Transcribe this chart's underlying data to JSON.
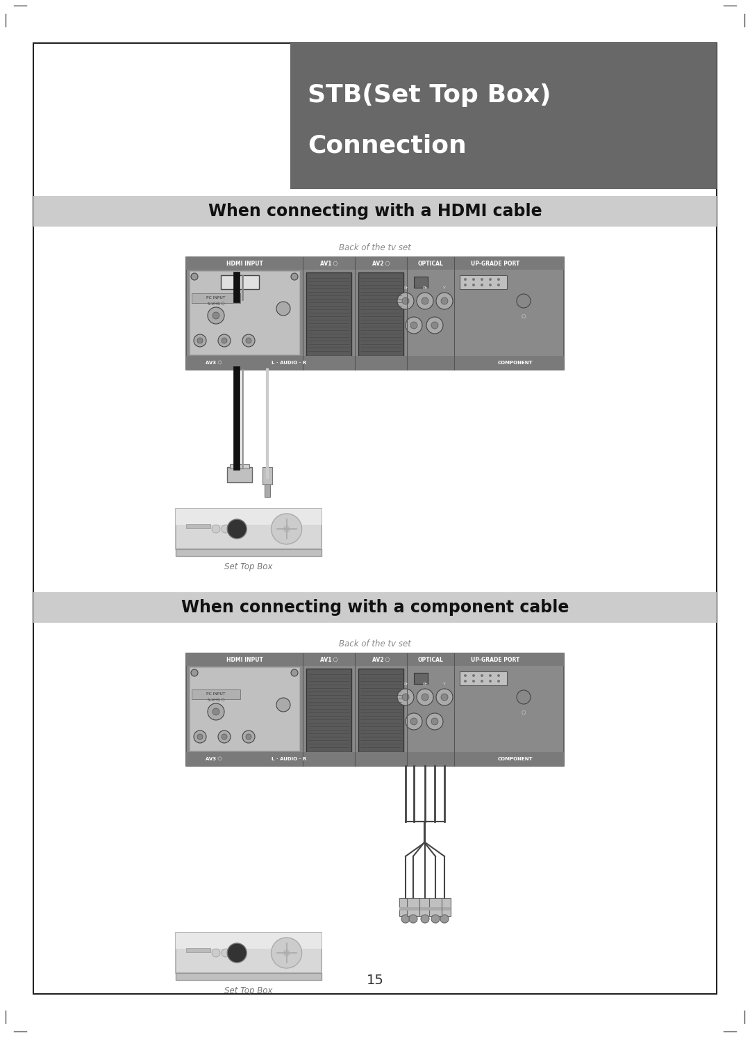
{
  "page_bg": "#ffffff",
  "outer_border_color": "#333333",
  "title_bg": "#686868",
  "title_line1": "STB(Set Top Box)",
  "title_line2": "Connection",
  "title_text_color": "#ffffff",
  "title_fontsize": 26,
  "section1_bg": "#cccccc",
  "section1_text": "When connecting with a HDMI cable",
  "section2_bg": "#cccccc",
  "section2_text": "When connecting with a component cable",
  "section_fontsize": 17,
  "back_of_tv_text": "Back of the tv set",
  "set_top_box_text": "Set Top Box",
  "page_number": "15",
  "tv_panel_bg": "#8a8a8a",
  "tv_panel_border": "#555555",
  "tv_panel_light_bg": "#9a9a9a",
  "stb_box_bg": "#d8d8d8",
  "stb_box_border": "#aaaaaa",
  "cable_color_black": "#222222",
  "cable_color_white": "#dddddd",
  "connector_color": "#bbbbbb",
  "scart_color": "#5a5a5a",
  "rca_color": "#999999",
  "text_label_color": "#333333"
}
